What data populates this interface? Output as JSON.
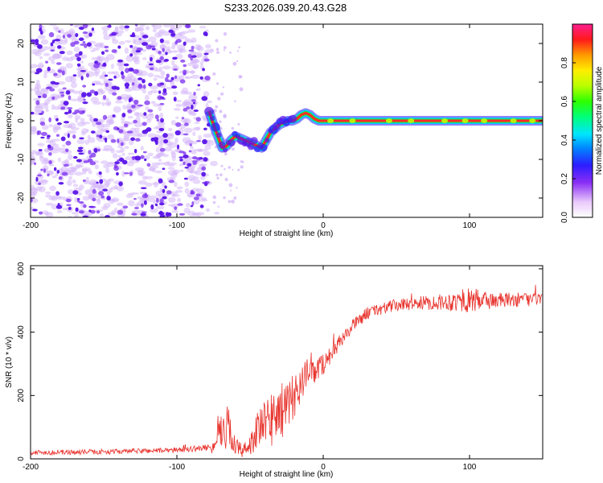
{
  "title": "S233.2026.039.20.43.G28",
  "colors": {
    "axis": "#000000",
    "snr_line": "#e8342e",
    "trace_band": "#ff2a2a",
    "scatter_purple": "#7a2cf0",
    "scatter_light": "#d6b8fa"
  },
  "chart_data": [
    {
      "type": "heatmap",
      "name": "spectrogram",
      "title": "S233.2026.039.20.43.G28",
      "xlabel": "Height of straight line (km)",
      "ylabel": "Frequency (Hz)",
      "xlim": [
        -200,
        150
      ],
      "ylim": [
        -25,
        25
      ],
      "xticks": [
        -200,
        -100,
        0,
        100
      ],
      "xtick_labels": [
        "-200",
        "-100",
        "0",
        "100"
      ],
      "yticks": [
        -20,
        -10,
        0,
        10,
        20
      ],
      "ytick_labels": [
        "-20",
        "-10",
        "0",
        "10",
        "20"
      ],
      "noise_region_km": [
        -200,
        -78
      ],
      "signal_trace": {
        "x": [
          -78,
          -75,
          -72,
          -69,
          -66,
          -63,
          -60,
          -57,
          -54,
          -51,
          -48,
          -45,
          -42,
          -39,
          -36,
          -33,
          -30,
          -27,
          -24,
          -21,
          -18,
          -15,
          -12,
          -9,
          -6,
          -3,
          0,
          5,
          10,
          20,
          40,
          60,
          80,
          100,
          120,
          150
        ],
        "y": [
          2.5,
          -1,
          -4,
          -7,
          -6.5,
          -5,
          -4,
          -4.5,
          -5,
          -5.5,
          -6,
          -6.5,
          -7,
          -5,
          -3,
          -2,
          -1,
          -0.5,
          0,
          0,
          0.5,
          1.5,
          2,
          1.5,
          0.5,
          0,
          0,
          0,
          0,
          0,
          0,
          0,
          0,
          0,
          0,
          0
        ]
      },
      "colorbar": {
        "label": "Normalized spectral amplitude",
        "range": [
          0,
          1
        ],
        "ticks": [
          0.0,
          0.2,
          0.4,
          0.6,
          0.8
        ],
        "tick_labels": [
          "0.0",
          "0.2",
          "0.4",
          "0.6",
          "0.8"
        ]
      }
    },
    {
      "type": "line",
      "name": "snr",
      "xlabel": "Height of straight line (km)",
      "ylabel": "SNR (10 * v/v)",
      "xlim": [
        -200,
        150
      ],
      "ylim": [
        0,
        610
      ],
      "xticks": [
        -200,
        -100,
        0,
        100
      ],
      "xtick_labels": [
        "-200",
        "-100",
        "0",
        "100"
      ],
      "yticks": [
        0,
        200,
        400,
        600
      ],
      "ytick_labels": [
        "0",
        "200",
        "400",
        "600"
      ],
      "envelope": {
        "x": [
          -200,
          -150,
          -100,
          -80,
          -75,
          -70,
          -65,
          -60,
          -55,
          -50,
          -45,
          -40,
          -35,
          -30,
          -25,
          -20,
          -15,
          -10,
          -5,
          0,
          5,
          10,
          15,
          20,
          25,
          30,
          40,
          50,
          60,
          80,
          100,
          120,
          150
        ],
        "mean": [
          20,
          22,
          28,
          35,
          40,
          90,
          100,
          45,
          20,
          50,
          90,
          110,
          130,
          150,
          160,
          200,
          240,
          270,
          280,
          300,
          330,
          360,
          390,
          420,
          440,
          460,
          475,
          485,
          490,
          495,
          500,
          500,
          505
        ],
        "noise": [
          8,
          8,
          8,
          10,
          15,
          60,
          70,
          40,
          20,
          40,
          60,
          70,
          100,
          90,
          80,
          70,
          60,
          50,
          40,
          35,
          30,
          25,
          20,
          20,
          20,
          20,
          20,
          20,
          20,
          25,
          40,
          25,
          20
        ]
      }
    }
  ]
}
